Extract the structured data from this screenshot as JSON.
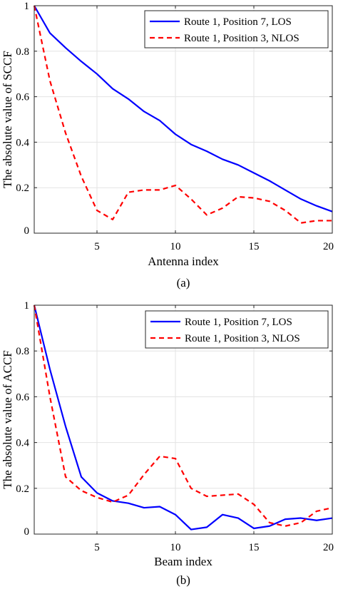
{
  "chart_data": [
    {
      "type": "line",
      "caption": "(a)",
      "xlabel": "Antenna index",
      "ylabel": "The absolute value of SCCF",
      "xlim": [
        1,
        20
      ],
      "ylim": [
        0,
        1
      ],
      "xticks": [
        5,
        10,
        15,
        20
      ],
      "xtick_labels": [
        "5",
        "10",
        "15",
        "20"
      ],
      "yticks": [
        0,
        0.2,
        0.4,
        0.6,
        0.8,
        1
      ],
      "ytick_labels": [
        "0",
        "0.2",
        "0.4",
        "0.6",
        "0.8",
        "1"
      ],
      "grid": true,
      "legend_position": "top-right",
      "x": [
        1,
        2,
        3,
        4,
        5,
        6,
        7,
        8,
        9,
        10,
        11,
        12,
        13,
        14,
        15,
        16,
        17,
        18,
        19,
        20
      ],
      "series": [
        {
          "name": "Route 1, Position 7, LOS",
          "color": "#0000ff",
          "dash": "solid",
          "values": [
            1.0,
            0.88,
            0.815,
            0.755,
            0.7,
            0.635,
            0.59,
            0.535,
            0.495,
            0.435,
            0.39,
            0.36,
            0.325,
            0.3,
            0.265,
            0.23,
            0.19,
            0.15,
            0.12,
            0.095
          ]
        },
        {
          "name": "Route 1, Position 3, NLOS",
          "color": "#ff0000",
          "dash": "dashed",
          "values": [
            1.0,
            0.67,
            0.44,
            0.25,
            0.1,
            0.06,
            0.18,
            0.19,
            0.19,
            0.21,
            0.15,
            0.08,
            0.11,
            0.16,
            0.155,
            0.14,
            0.1,
            0.045,
            0.055,
            0.055
          ]
        }
      ]
    },
    {
      "type": "line",
      "caption": "(b)",
      "xlabel": "Beam index",
      "ylabel": "The absolute value of ACCF",
      "xlim": [
        1,
        20
      ],
      "ylim": [
        0,
        1
      ],
      "xticks": [
        5,
        10,
        15,
        20
      ],
      "xtick_labels": [
        "5",
        "10",
        "15",
        "20"
      ],
      "yticks": [
        0,
        0.2,
        0.4,
        0.6,
        0.8,
        1
      ],
      "ytick_labels": [
        "0",
        "0.2",
        "0.4",
        "0.6",
        "0.8",
        "1"
      ],
      "grid": true,
      "legend_position": "top-right",
      "x": [
        1,
        2,
        3,
        4,
        5,
        6,
        7,
        8,
        9,
        10,
        11,
        12,
        13,
        14,
        15,
        16,
        17,
        18,
        19,
        20
      ],
      "series": [
        {
          "name": "Route 1, Position 7, LOS",
          "color": "#0000ff",
          "dash": "solid",
          "values": [
            1.0,
            0.72,
            0.47,
            0.25,
            0.18,
            0.145,
            0.135,
            0.115,
            0.12,
            0.085,
            0.02,
            0.03,
            0.085,
            0.07,
            0.025,
            0.035,
            0.065,
            0.07,
            0.06,
            0.07
          ]
        },
        {
          "name": "Route 1, Position 3, NLOS",
          "color": "#ff0000",
          "dash": "dashed",
          "values": [
            1.0,
            0.6,
            0.25,
            0.19,
            0.16,
            0.14,
            0.17,
            0.26,
            0.34,
            0.33,
            0.2,
            0.165,
            0.17,
            0.175,
            0.13,
            0.05,
            0.035,
            0.05,
            0.1,
            0.115
          ]
        }
      ]
    }
  ]
}
